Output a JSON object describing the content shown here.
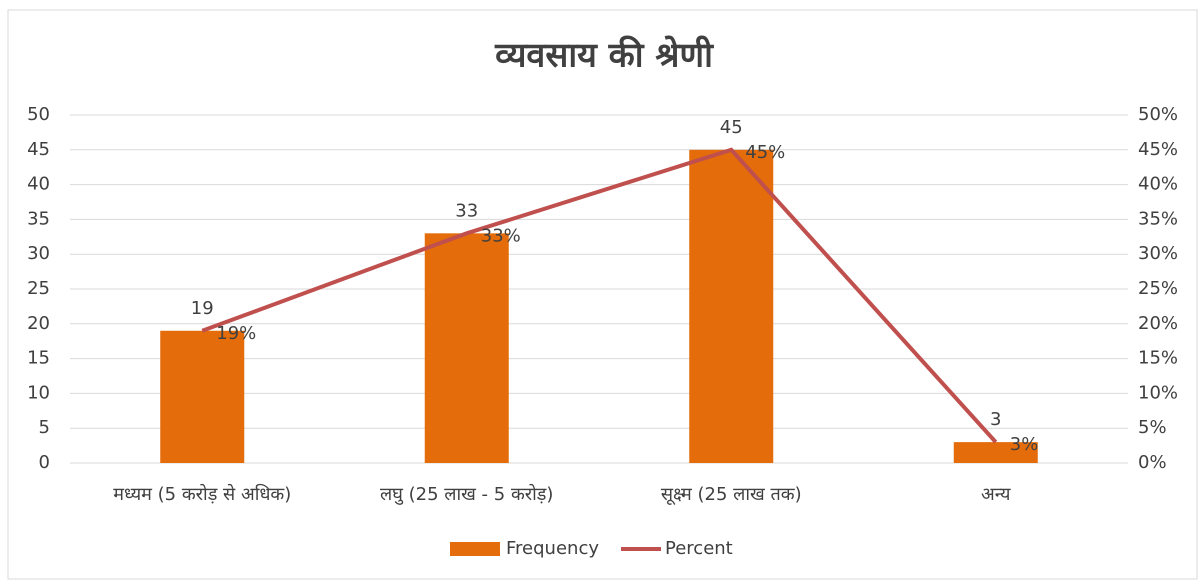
{
  "chart_data": {
    "type": "bar",
    "title": "व्यवसाय की श्रेणी",
    "categories": [
      "मध्यम (5 करोड़ से अधिक)",
      "लघु  (25 लाख - 5 करोड़)",
      "सूक्ष्म  (25 लाख तक)",
      "अन्य"
    ],
    "series": [
      {
        "name": "Frequency",
        "type": "bar",
        "color": "#e46c0a",
        "values": [
          19,
          33,
          45,
          3
        ]
      },
      {
        "name": "Percent",
        "type": "line",
        "axis": "y2",
        "color": "#c0504d",
        "values": [
          19,
          33,
          45,
          3
        ],
        "value_labels": [
          "19%",
          "33%",
          "45%",
          "3%"
        ]
      }
    ],
    "ylim": [
      0,
      50
    ],
    "yticks": [
      0,
      5,
      10,
      15,
      20,
      25,
      30,
      35,
      40,
      45,
      50
    ],
    "y2lim": [
      0,
      50
    ],
    "y2ticks": [
      {
        "value": 0,
        "label": "0%"
      },
      {
        "value": 5,
        "label": "5%"
      },
      {
        "value": 10,
        "label": "10%"
      },
      {
        "value": 15,
        "label": "15%"
      },
      {
        "value": 20,
        "label": "20%"
      },
      {
        "value": 25,
        "label": "25%"
      },
      {
        "value": 30,
        "label": "30%"
      },
      {
        "value": 35,
        "label": "35%"
      },
      {
        "value": 40,
        "label": "40%"
      },
      {
        "value": 45,
        "label": "45%"
      },
      {
        "value": 50,
        "label": "50%"
      }
    ],
    "grid": true,
    "legend": "bottom"
  }
}
